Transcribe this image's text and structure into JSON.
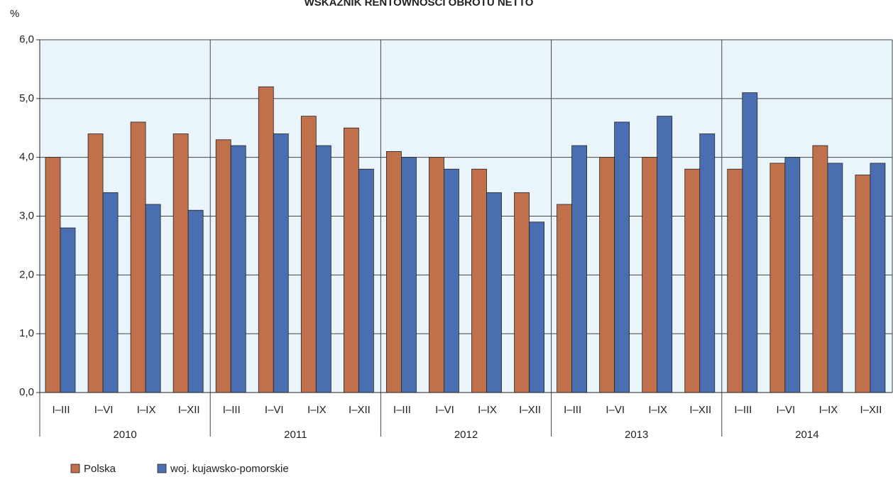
{
  "chart_data": {
    "type": "bar",
    "title": "WSKAŹNIK RENTOWNOŚCI OBROTU NETTO",
    "y_label": "%",
    "categories": [
      "I–III",
      "I–VI",
      "I–IX",
      "I–XII",
      "I–III",
      "I–VI",
      "I–IX",
      "I–XII",
      "I–III",
      "I–VI",
      "I–IX",
      "I–XII",
      "I–III",
      "I–VI",
      "I–IX",
      "I–XII",
      "I–III",
      "I–VI",
      "I–IX",
      "I–XII"
    ],
    "category_groups": [
      "2010",
      "2011",
      "2012",
      "2013",
      "2014"
    ],
    "series": [
      {
        "name": "Polska",
        "color": "#c0704a",
        "values": [
          4.0,
          4.4,
          4.6,
          4.4,
          4.3,
          5.2,
          4.7,
          4.5,
          4.1,
          4.0,
          3.8,
          3.4,
          3.2,
          4.0,
          4.0,
          3.8,
          3.8,
          3.9,
          4.2,
          3.7
        ]
      },
      {
        "name": "woj. kujawsko-pomorskie",
        "color": "#4a6fb0",
        "values": [
          2.8,
          3.4,
          3.2,
          3.1,
          4.2,
          4.4,
          4.2,
          3.8,
          4.0,
          3.8,
          3.4,
          2.9,
          4.2,
          4.6,
          4.7,
          4.4,
          5.1,
          4.0,
          3.9,
          3.9
        ]
      }
    ],
    "ylim": [
      0,
      6
    ],
    "yticks": [
      {
        "value": 0,
        "label": "0,0"
      },
      {
        "value": 1,
        "label": "1,0"
      },
      {
        "value": 2,
        "label": "2,0"
      },
      {
        "value": 3,
        "label": "3,0"
      },
      {
        "value": 4,
        "label": "4,0"
      },
      {
        "value": 5,
        "label": "5,0"
      },
      {
        "value": 6,
        "label": "6,0"
      }
    ],
    "grid": true,
    "background": "#eaf4fb"
  }
}
